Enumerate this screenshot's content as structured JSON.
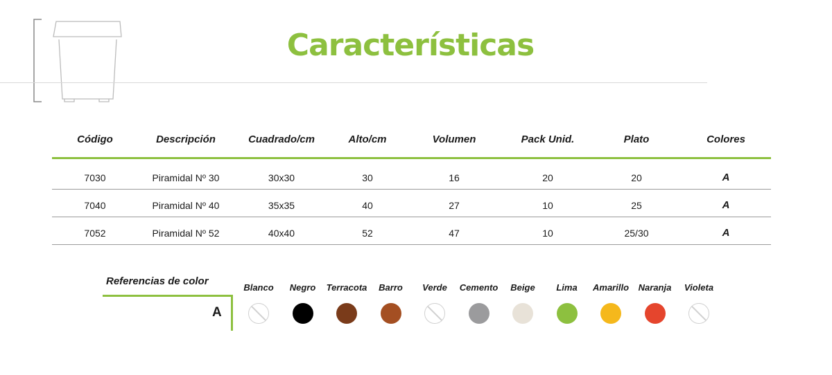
{
  "title": "Características",
  "table": {
    "headers": [
      "Código",
      "Descripción",
      "Cuadrado/cm",
      "Alto/cm",
      "Volumen",
      "Pack Unid.",
      "Plato",
      "Colores"
    ],
    "rows": [
      [
        "7030",
        "Piramidal Nº 30",
        "30x30",
        "30",
        "16",
        "20",
        "20",
        "A"
      ],
      [
        "7040",
        "Piramidal Nº 40",
        "35x35",
        "40",
        "27",
        "10",
        "25",
        "A"
      ],
      [
        "7052",
        "Piramidal Nº 52",
        "40x40",
        "52",
        "47",
        "10",
        "25/30",
        "A"
      ]
    ]
  },
  "colors": {
    "title": "Referencias de color",
    "row_label": "A",
    "swatches": [
      {
        "name": "Blanco",
        "color": null
      },
      {
        "name": "Negro",
        "color": "#000000"
      },
      {
        "name": "Terracota",
        "color": "#7a3b1a"
      },
      {
        "name": "Barro",
        "color": "#a44f22"
      },
      {
        "name": "Verde",
        "color": null
      },
      {
        "name": "Cemento",
        "color": "#9b9b9d"
      },
      {
        "name": "Beige",
        "color": "#e8e2d8"
      },
      {
        "name": "Lima",
        "color": "#8dc03f"
      },
      {
        "name": "Amarillo",
        "color": "#f5b81c"
      },
      {
        "name": "Naranja",
        "color": "#e5452d"
      },
      {
        "name": "Violeta",
        "color": null
      }
    ]
  },
  "accent": "#8dc03f"
}
